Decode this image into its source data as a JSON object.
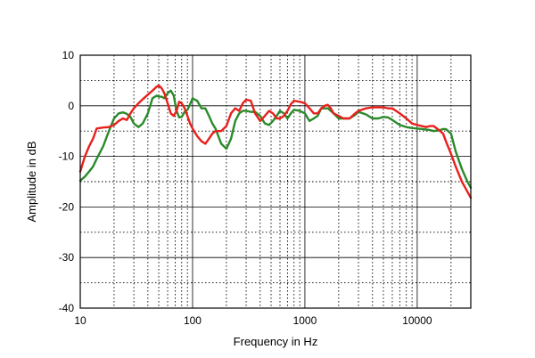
{
  "chart_data": {
    "type": "line",
    "title": "",
    "xlabel": "Frequency in Hz",
    "ylabel": "Amplitude in dB",
    "xscale": "log",
    "xlim": [
      10,
      30000
    ],
    "ylim": [
      -40,
      10
    ],
    "grid": true,
    "x_ticks": [
      10,
      100,
      1000,
      10000
    ],
    "x_tick_labels": [
      "10",
      "100",
      "1000",
      "10000"
    ],
    "y_ticks": [
      10,
      0,
      -10,
      -20,
      -30,
      -40
    ],
    "y_tick_labels": [
      "10",
      "0",
      "-10",
      "-20",
      "-30",
      "-40"
    ],
    "series": [
      {
        "color": "#e8201c",
        "x": [
          10,
          11,
          12,
          13,
          14,
          16,
          18,
          20,
          22,
          24,
          26,
          28,
          30,
          33,
          36,
          40,
          44,
          48,
          50,
          53,
          56,
          60,
          64,
          68,
          72,
          76,
          80,
          85,
          90,
          95,
          100,
          110,
          120,
          130,
          140,
          150,
          160,
          180,
          200,
          220,
          240,
          260,
          280,
          300,
          330,
          360,
          400,
          440,
          480,
          520,
          560,
          600,
          650,
          700,
          750,
          800,
          900,
          1000,
          1100,
          1200,
          1300,
          1400,
          1500,
          1600,
          1700,
          1800,
          2000,
          2200,
          2500,
          2800,
          3000,
          3500,
          4000,
          4500,
          5000,
          5500,
          6000,
          7000,
          8000,
          9000,
          10000,
          11000,
          12000,
          13000,
          14000,
          15000,
          16000,
          17000,
          18000,
          20000,
          22000,
          25000,
          28000,
          30000
        ],
        "y": [
          -13,
          -10,
          -8,
          -6.5,
          -4.5,
          -4.3,
          -4.2,
          -3.8,
          -3,
          -2.5,
          -2.8,
          -1.5,
          -0.5,
          0.5,
          1.3,
          2.2,
          3,
          3.8,
          4,
          3.5,
          2.5,
          0.5,
          -1.5,
          -2,
          -1,
          0.8,
          0.5,
          -0.5,
          -2,
          -3.5,
          -4.5,
          -6,
          -7,
          -7.5,
          -6.5,
          -5.5,
          -5,
          -5,
          -4,
          -1.5,
          -0.5,
          -1,
          0.5,
          1.2,
          1,
          -1.5,
          -3,
          -2,
          -1,
          -1.5,
          -2.5,
          -2.5,
          -2,
          -1,
          0.3,
          1,
          0.8,
          0.5,
          -0.5,
          -1.5,
          -1.5,
          -0.5,
          0,
          0.2,
          -0.5,
          -1.5,
          -2,
          -2.5,
          -2.5,
          -1.5,
          -1,
          -0.5,
          -0.3,
          -0.3,
          -0.3,
          -0.5,
          -0.5,
          -1.5,
          -2.5,
          -3.5,
          -3.8,
          -4,
          -4.2,
          -4,
          -4,
          -4.5,
          -5,
          -5.5,
          -7,
          -9.5,
          -12,
          -15,
          -17,
          -18.2
        ]
      },
      {
        "color": "#2a8a2a",
        "x": [
          10,
          11,
          12,
          13,
          14,
          16,
          18,
          20,
          22,
          24,
          26,
          28,
          30,
          33,
          36,
          40,
          44,
          48,
          50,
          53,
          56,
          60,
          64,
          68,
          72,
          76,
          80,
          85,
          90,
          95,
          100,
          105,
          110,
          120,
          130,
          140,
          150,
          160,
          180,
          200,
          220,
          240,
          260,
          280,
          300,
          330,
          360,
          400,
          440,
          480,
          520,
          560,
          600,
          650,
          700,
          750,
          800,
          900,
          1000,
          1100,
          1200,
          1300,
          1400,
          1500,
          1600,
          1700,
          1800,
          2000,
          2200,
          2500,
          2800,
          3000,
          3500,
          4000,
          4500,
          5000,
          5500,
          6000,
          7000,
          8000,
          9000,
          10000,
          11000,
          12000,
          13000,
          14000,
          15000,
          16000,
          17000,
          18000,
          20000,
          22000,
          25000,
          28000,
          30000
        ],
        "y": [
          -14.8,
          -14,
          -13,
          -12,
          -10.5,
          -8,
          -5,
          -2.5,
          -1.5,
          -1.3,
          -1.6,
          -2.2,
          -3.5,
          -4.2,
          -3.5,
          -1.5,
          1.5,
          2,
          1.8,
          1.8,
          1.5,
          2.5,
          3,
          2,
          -1,
          -2.3,
          -2.2,
          -1.2,
          -0.8,
          0.3,
          1.5,
          1.2,
          1,
          -0.5,
          -0.5,
          -2,
          -3.5,
          -4.5,
          -7.5,
          -8.5,
          -6.5,
          -3,
          -1.5,
          -1,
          -1,
          -1.2,
          -1.2,
          -2,
          -3.5,
          -3.8,
          -3,
          -2,
          -1,
          -1.5,
          -2.5,
          -1.5,
          -0.8,
          -1,
          -1.5,
          -3,
          -2.5,
          -2,
          -0.5,
          -0.5,
          -0.5,
          -1,
          -1.5,
          -2.5,
          -2.5,
          -2.5,
          -1.8,
          -1.2,
          -1.7,
          -2.5,
          -2.5,
          -2.2,
          -2.3,
          -2.8,
          -3.8,
          -4.2,
          -4.4,
          -4.5,
          -4.6,
          -4.7,
          -4.8,
          -5,
          -4.9,
          -4.8,
          -4.6,
          -4.6,
          -5.5,
          -9,
          -12.5,
          -15,
          -16.2
        ]
      }
    ]
  }
}
